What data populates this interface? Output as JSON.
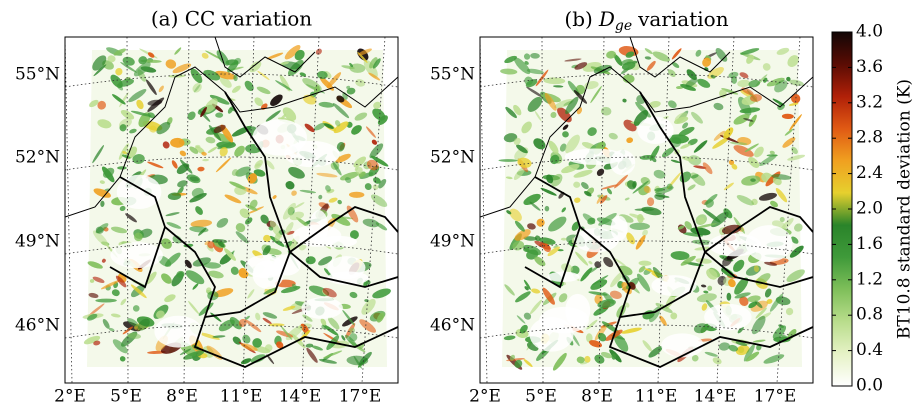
{
  "panels": [
    {
      "title": {
        "text": "(a) CC variation"
      }
    },
    {
      "title": {
        "prefix": "(b)",
        "symbol": "D",
        "subscript": "ge",
        "suffix": "variation"
      }
    }
  ],
  "lat_labels": [
    "55°N",
    "52°N",
    "49°N",
    "46°N"
  ],
  "lon_labels": [
    "2°E",
    "5°E",
    "8°E",
    "11°E",
    "14°E",
    "17°E"
  ],
  "colorbar": {
    "label": "BT10.8 standard deviation (K)",
    "clim": [
      {
        "value": 0,
        "label": "0.0"
      },
      {
        "value": 4,
        "label": "4.0"
      }
    ],
    "ticks": [
      {
        "value": 0,
        "label": "0.0"
      },
      0.4,
      0.8,
      1.2,
      1.6,
      {
        "value": 2,
        "label": "2.0"
      },
      2.4,
      2.8,
      3.2,
      3.6,
      {
        "value": 4,
        "label": "4.0"
      }
    ],
    "colormap": [
      "#ffffff",
      "#e6f2c6",
      "#b9dd8c",
      "#7fbf5a",
      "#3f9a3a",
      "#2a842a",
      "#e6d02e",
      "#f0a020",
      "#e05a14",
      "#b02008",
      "#5a0c04",
      "#120606"
    ]
  }
}
